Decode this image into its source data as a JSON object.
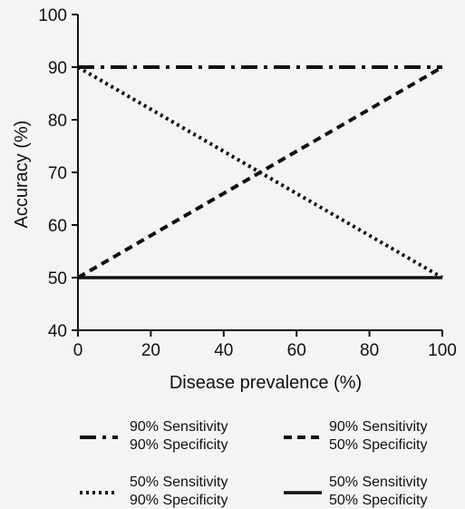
{
  "chart_data": {
    "type": "line",
    "xlabel": "Disease prevalence (%)",
    "ylabel": "Accuracy (%)",
    "xlim": [
      0,
      100
    ],
    "ylim": [
      40,
      100
    ],
    "x_ticks": [
      0,
      20,
      40,
      60,
      80,
      100
    ],
    "y_ticks": [
      40,
      50,
      60,
      70,
      80,
      90,
      100
    ],
    "grid": false,
    "legend_position": "bottom",
    "series": [
      {
        "label_line1": "90% Sensitivity",
        "label_line2": "90% Specificity",
        "style": "dash-dot",
        "x": [
          0,
          100
        ],
        "y": [
          90,
          90
        ]
      },
      {
        "label_line1": "90% Sensitivity",
        "label_line2": "50% Specificity",
        "style": "dashed",
        "x": [
          0,
          100
        ],
        "y": [
          50,
          90
        ]
      },
      {
        "label_line1": "50% Sensitivity",
        "label_line2": "90% Specificity",
        "style": "dotted",
        "x": [
          0,
          100
        ],
        "y": [
          90,
          50
        ]
      },
      {
        "label_line1": "50% Sensitivity",
        "label_line2": "50% Specificity",
        "style": "solid",
        "x": [
          0,
          100
        ],
        "y": [
          50,
          50
        ]
      }
    ]
  }
}
